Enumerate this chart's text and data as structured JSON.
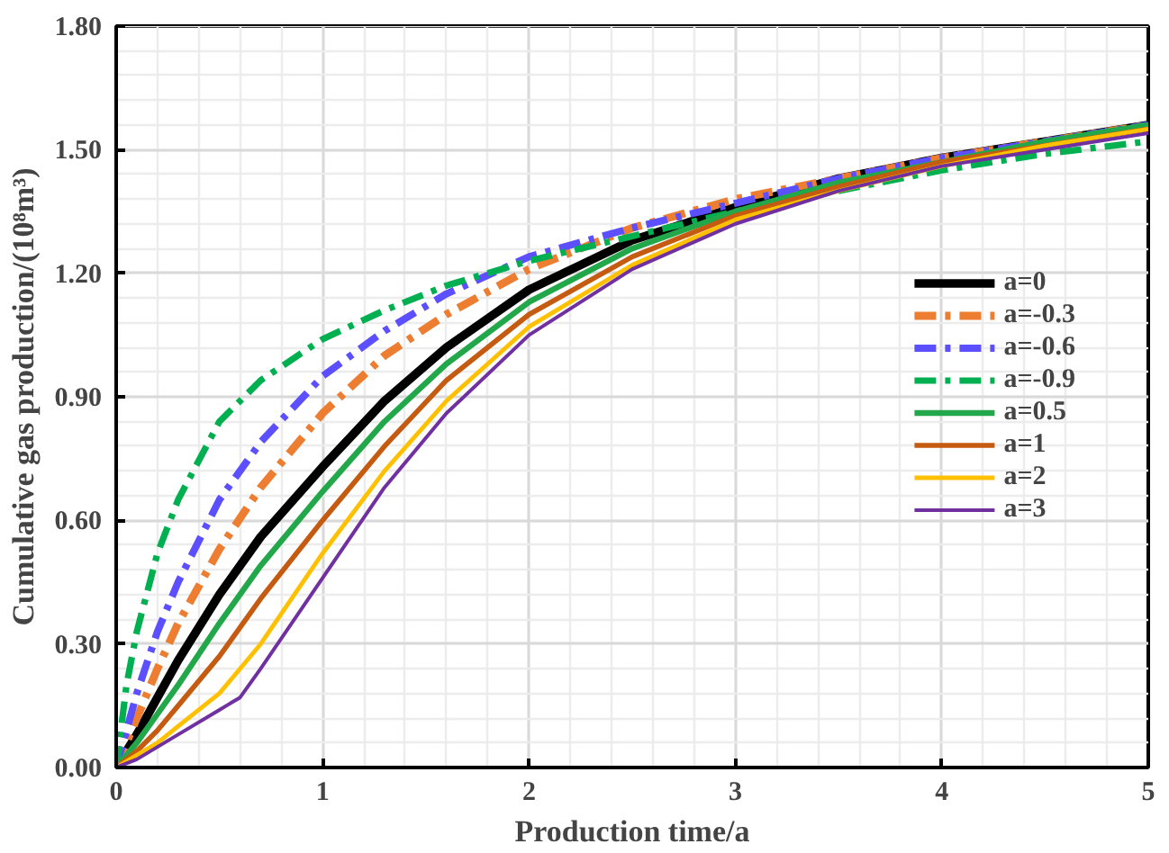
{
  "chart_data": {
    "type": "line",
    "xlabel": "Production time/a",
    "ylabel": "Cumulative gas production/(10⁸m³)",
    "xlim": [
      0,
      5
    ],
    "xticks": [
      0,
      1,
      2,
      3,
      4,
      5
    ],
    "ylim": [
      0,
      1.8
    ],
    "yticks": [
      {
        "value": 0,
        "label": "0.00"
      },
      {
        "value": 0.3,
        "label": "0.30"
      },
      {
        "value": 0.6,
        "label": "0.60"
      },
      {
        "value": 0.9,
        "label": "0.90"
      },
      {
        "value": 1.2,
        "label": "1.20"
      },
      {
        "value": 1.5,
        "label": "1.50"
      },
      {
        "value": 1.8,
        "label": "1.80"
      }
    ],
    "grid": true,
    "legend": "right",
    "marker": "none",
    "series": [
      {
        "name": "a=0",
        "color": "#000000",
        "line_style": "solid",
        "x": [
          0,
          0.1,
          0.2,
          0.3,
          0.5,
          0.7,
          1,
          1.3,
          1.6,
          2,
          2.5,
          3,
          3.5,
          4,
          4.5,
          5
        ],
        "values": [
          0,
          0.08,
          0.17,
          0.26,
          0.42,
          0.56,
          0.73,
          0.89,
          1.02,
          1.16,
          1.28,
          1.36,
          1.43,
          1.48,
          1.52,
          1.56
        ]
      },
      {
        "name": "a=-0.3",
        "color": "#ed7d31",
        "line_style": "dashed",
        "x": [
          0,
          0.1,
          0.2,
          0.3,
          0.5,
          0.7,
          1,
          1.3,
          1.6,
          2,
          2.5,
          3,
          3.5,
          4,
          4.5,
          5
        ],
        "values": [
          0,
          0.12,
          0.24,
          0.35,
          0.53,
          0.68,
          0.86,
          1.0,
          1.1,
          1.21,
          1.31,
          1.38,
          1.43,
          1.48,
          1.52,
          1.56
        ]
      },
      {
        "name": "a=-0.6",
        "color": "#5b4fff",
        "line_style": "dashed",
        "x": [
          0,
          0.1,
          0.2,
          0.3,
          0.5,
          0.7,
          1,
          1.3,
          1.6,
          2,
          2.5,
          3,
          3.5,
          4,
          4.5,
          5
        ],
        "values": [
          0,
          0.18,
          0.33,
          0.45,
          0.65,
          0.79,
          0.95,
          1.06,
          1.15,
          1.24,
          1.31,
          1.37,
          1.43,
          1.48,
          1.52,
          1.56
        ]
      },
      {
        "name": "a=-0.9",
        "color": "#00b050",
        "line_style": "dashed",
        "x": [
          0,
          0.05,
          0.1,
          0.2,
          0.3,
          0.5,
          0.7,
          1,
          1.3,
          1.6,
          2,
          2.5,
          3,
          3.5,
          4,
          4.5,
          5
        ],
        "values": [
          0,
          0.2,
          0.33,
          0.52,
          0.65,
          0.84,
          0.94,
          1.04,
          1.11,
          1.17,
          1.23,
          1.29,
          1.35,
          1.4,
          1.45,
          1.49,
          1.52
        ]
      },
      {
        "name": "a=0.5",
        "color": "#22a84a",
        "line_style": "solid",
        "x": [
          0,
          0.1,
          0.2,
          0.3,
          0.5,
          0.7,
          1,
          1.3,
          1.6,
          2,
          2.5,
          3,
          3.5,
          4,
          4.5,
          5
        ],
        "values": [
          0,
          0.06,
          0.13,
          0.2,
          0.35,
          0.49,
          0.67,
          0.84,
          0.98,
          1.13,
          1.26,
          1.35,
          1.42,
          1.47,
          1.52,
          1.56
        ]
      },
      {
        "name": "a=1",
        "color": "#c55a11",
        "line_style": "solid",
        "x": [
          0,
          0.1,
          0.2,
          0.3,
          0.5,
          0.7,
          1,
          1.3,
          1.6,
          2,
          2.5,
          3,
          3.5,
          4,
          4.5,
          5
        ],
        "values": [
          0,
          0.04,
          0.09,
          0.15,
          0.27,
          0.41,
          0.6,
          0.78,
          0.94,
          1.1,
          1.24,
          1.34,
          1.41,
          1.47,
          1.51,
          1.55
        ]
      },
      {
        "name": "a=2",
        "color": "#ffc000",
        "line_style": "solid",
        "x": [
          0,
          0.1,
          0.2,
          0.3,
          0.5,
          0.7,
          1,
          1.3,
          1.6,
          2,
          2.5,
          3,
          3.5,
          4,
          4.5,
          5
        ],
        "values": [
          0,
          0.03,
          0.06,
          0.1,
          0.18,
          0.3,
          0.52,
          0.72,
          0.89,
          1.07,
          1.22,
          1.33,
          1.4,
          1.46,
          1.51,
          1.55
        ]
      },
      {
        "name": "a=3",
        "color": "#7030a0",
        "line_style": "solid",
        "x": [
          0,
          0.1,
          0.2,
          0.3,
          0.5,
          0.6,
          0.7,
          1,
          1.3,
          1.6,
          2,
          2.5,
          3,
          3.5,
          4,
          4.5,
          5
        ],
        "values": [
          0,
          0.02,
          0.05,
          0.08,
          0.14,
          0.17,
          0.24,
          0.46,
          0.68,
          0.86,
          1.05,
          1.21,
          1.32,
          1.4,
          1.46,
          1.5,
          1.54
        ]
      }
    ]
  }
}
